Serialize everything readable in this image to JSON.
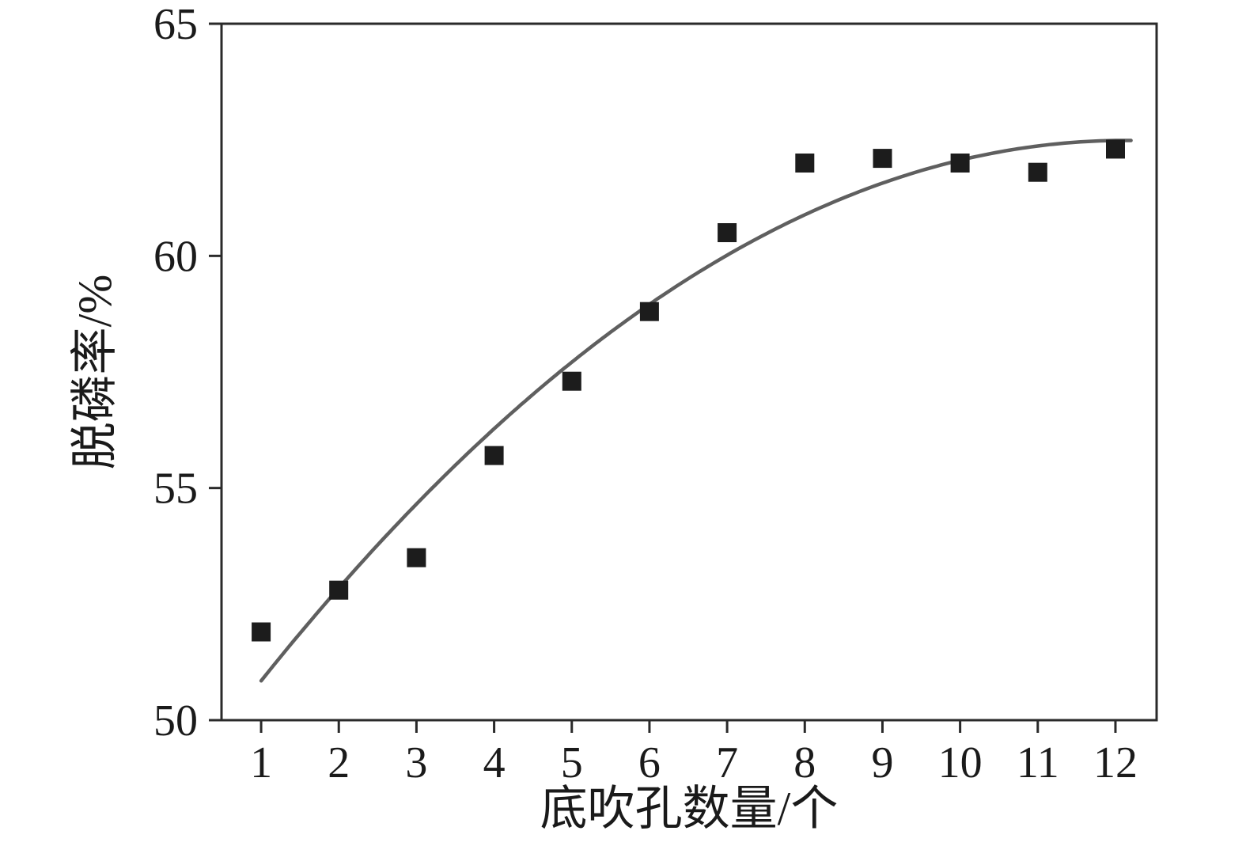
{
  "chart_data": {
    "type": "scatter",
    "title": "",
    "xlabel": "底吹孔数量/个",
    "ylabel": "脱磷率/%",
    "x": [
      1,
      2,
      3,
      4,
      5,
      6,
      7,
      8,
      9,
      10,
      11,
      12
    ],
    "y": [
      51.9,
      52.8,
      53.5,
      55.7,
      57.3,
      58.8,
      60.5,
      62.0,
      62.1,
      62.0,
      61.8,
      62.3
    ],
    "fit_curve": {
      "type": "quadratic",
      "a": 48.661,
      "b": 2.28,
      "c": -0.094,
      "x_start": 1.0,
      "x_end": 12.2
    },
    "xticks": [
      "1",
      "2",
      "3",
      "4",
      "5",
      "6",
      "7",
      "8",
      "9",
      "10",
      "11",
      "12"
    ],
    "xtick_values": [
      1,
      2,
      3,
      4,
      5,
      6,
      7,
      8,
      9,
      10,
      11,
      12
    ],
    "yticks": [
      "50",
      "55",
      "60",
      "65"
    ],
    "ytick_values": [
      50,
      55,
      60,
      65
    ],
    "xlim": [
      0.49,
      12.53
    ],
    "ylim": [
      50,
      65
    ],
    "grid": false,
    "legend": "none",
    "marker": {
      "shape": "square",
      "color": "#1c1c1c",
      "size": 24
    },
    "line_color": "#5f5f5f",
    "axis_color": "#2a2a2a",
    "background": "#ffffff"
  }
}
